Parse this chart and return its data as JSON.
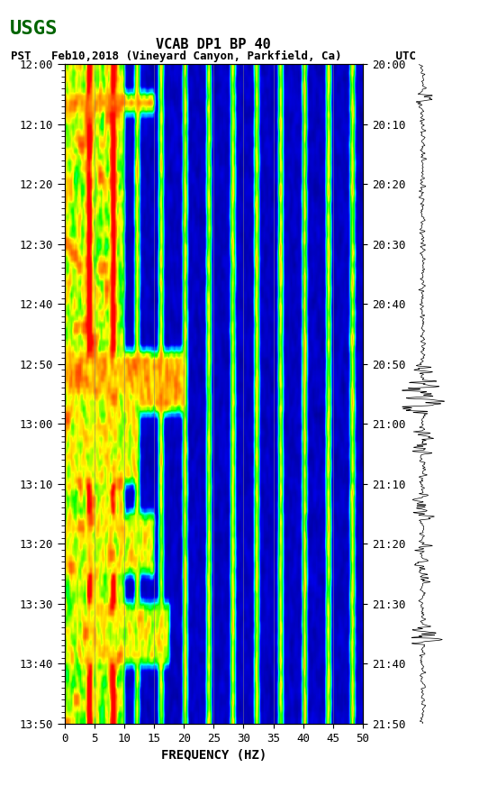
{
  "title_line1": "VCAB DP1 BP 40",
  "title_line2": "PST   Feb10,2018 (Vineyard Canyon, Parkfield, Ca)        UTC",
  "xlabel": "FREQUENCY (HZ)",
  "ylabel_left": "PST",
  "ylabel_right": "UTC",
  "freq_min": 0,
  "freq_max": 50,
  "freq_ticks": [
    0,
    5,
    10,
    15,
    20,
    25,
    30,
    35,
    40,
    45,
    50
  ],
  "time_start_pst": "12:00",
  "time_end_pst": "13:50",
  "time_start_utc": "20:00",
  "time_end_utc": "21:50",
  "pst_ticks": [
    "12:00",
    "12:10",
    "12:20",
    "12:30",
    "12:40",
    "12:50",
    "13:00",
    "13:10",
    "13:20",
    "13:30",
    "13:40",
    "13:50"
  ],
  "utc_ticks": [
    "20:00",
    "20:10",
    "20:20",
    "20:30",
    "20:40",
    "20:50",
    "21:00",
    "21:10",
    "21:20",
    "21:30",
    "21:40",
    "21:50"
  ],
  "n_time": 110,
  "n_freq": 200,
  "background_color": "#ffffff",
  "spectrogram_bg": "#00008B",
  "vertical_line_color": "#808080",
  "vertical_line_positions": [
    5,
    10,
    15,
    20,
    25,
    30,
    35,
    40,
    45
  ],
  "usgs_logo_color": "#006400",
  "figsize": [
    5.52,
    8.92
  ],
  "dpi": 100
}
